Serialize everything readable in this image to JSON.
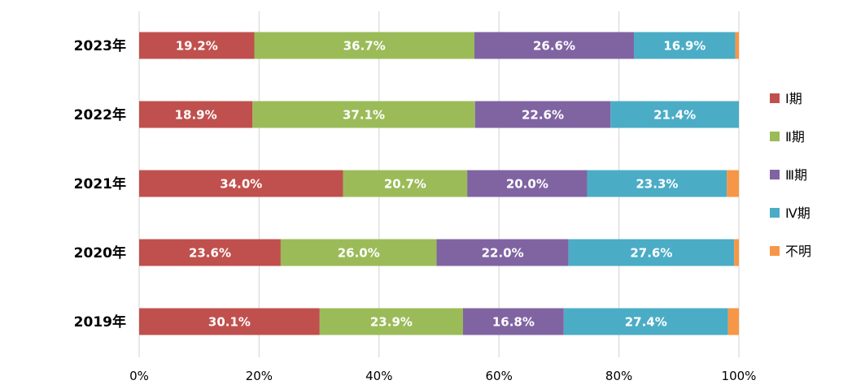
{
  "chart_data": {
    "type": "bar",
    "orientation": "horizontal",
    "stacked": true,
    "percent": true,
    "categories": [
      "2023年",
      "2022年",
      "2021年",
      "2020年",
      "2019年"
    ],
    "series": [
      {
        "name": "Ⅰ期",
        "color": "#c0504d",
        "values": [
          19.2,
          18.9,
          34.0,
          23.6,
          30.1
        ],
        "labels": [
          "19.2%",
          "18.9%",
          "34.0%",
          "23.6%",
          "30.1%"
        ]
      },
      {
        "name": "Ⅱ期",
        "color": "#9bbb59",
        "values": [
          36.7,
          37.1,
          20.7,
          26.0,
          23.9
        ],
        "labels": [
          "36.7%",
          "37.1%",
          "20.7%",
          "26.0%",
          "23.9%"
        ]
      },
      {
        "name": "Ⅲ期",
        "color": "#8064a2",
        "values": [
          26.6,
          22.6,
          20.0,
          22.0,
          16.8
        ],
        "labels": [
          "26.6%",
          "22.6%",
          "20.0%",
          "22.0%",
          "16.8%"
        ]
      },
      {
        "name": "Ⅳ期",
        "color": "#4bacc6",
        "values": [
          16.9,
          21.4,
          23.3,
          27.6,
          27.4
        ],
        "labels": [
          "16.9%",
          "21.4%",
          "23.3%",
          "27.6%",
          "27.4%"
        ]
      },
      {
        "name": "不明",
        "color": "#f79646",
        "values": [
          0.6,
          0.0,
          2.0,
          0.8,
          1.8
        ],
        "labels": [
          "",
          "",
          "",
          "",
          ""
        ]
      }
    ],
    "xlim": [
      0,
      100
    ],
    "xticks": [
      "0%",
      "20%",
      "40%",
      "60%",
      "80%",
      "100%"
    ],
    "grid": true,
    "legend_position": "right"
  }
}
